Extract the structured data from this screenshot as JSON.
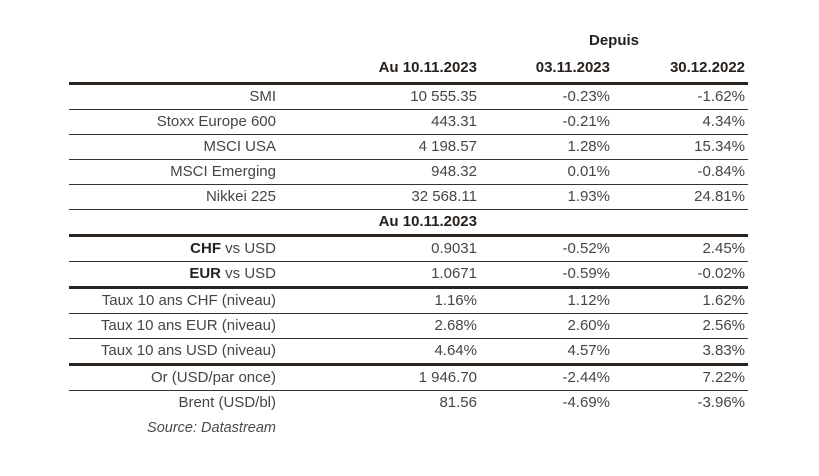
{
  "colors": {
    "background": "#ffffff",
    "line_thick": "#2b231d",
    "line_thin": "#3a322b",
    "text_body": "#454545",
    "text_header": "#27211d"
  },
  "table": {
    "depuis_header": "Depuis",
    "column_headers": [
      "Au 10.11.2023",
      "03.11.2023",
      "30.12.2022"
    ],
    "rows": [
      {
        "label_bold": "",
        "label": "SMI",
        "values": [
          "10 555.35",
          "-0.23%",
          "-1.62%"
        ],
        "border": "thin",
        "section": false
      },
      {
        "label_bold": "",
        "label": "Stoxx Europe 600",
        "values": [
          "443.31",
          "-0.21%",
          "4.34%"
        ],
        "border": "thin",
        "section": false
      },
      {
        "label_bold": "",
        "label": "MSCI USA",
        "values": [
          "4 198.57",
          "1.28%",
          "15.34%"
        ],
        "border": "thin",
        "section": false
      },
      {
        "label_bold": "",
        "label": "MSCI Emerging",
        "values": [
          "948.32",
          "0.01%",
          "-0.84%"
        ],
        "border": "thin",
        "section": false
      },
      {
        "label_bold": "",
        "label": "Nikkei 225",
        "values": [
          "32 568.11",
          "1.93%",
          "24.81%"
        ],
        "border": "thin",
        "section": false
      },
      {
        "label_bold": "",
        "label": "",
        "values": [
          "Au 10.11.2023",
          "",
          ""
        ],
        "border": "thick",
        "section": true
      },
      {
        "label_bold": "CHF",
        "label": " vs USD",
        "values": [
          "0.9031",
          "-0.52%",
          "2.45%"
        ],
        "border": "thin",
        "section": false
      },
      {
        "label_bold": "EUR",
        "label": " vs USD",
        "values": [
          "1.0671",
          "-0.59%",
          "-0.02%"
        ],
        "border": "thick",
        "section": false
      },
      {
        "label_bold": "",
        "label": "Taux 10 ans CHF (niveau)",
        "values": [
          "1.16%",
          "1.12%",
          "1.62%"
        ],
        "border": "thin",
        "section": false
      },
      {
        "label_bold": "",
        "label": "Taux 10 ans EUR (niveau)",
        "values": [
          "2.68%",
          "2.60%",
          "2.56%"
        ],
        "border": "thin",
        "section": false
      },
      {
        "label_bold": "",
        "label": "Taux 10 ans USD (niveau)",
        "values": [
          "4.64%",
          "4.57%",
          "3.83%"
        ],
        "border": "thick",
        "section": false
      },
      {
        "label_bold": "",
        "label": "Or (USD/par once)",
        "values": [
          "1 946.70",
          "-2.44%",
          "7.22%"
        ],
        "border": "thin",
        "section": false
      },
      {
        "label_bold": "",
        "label": "Brent (USD/bl)",
        "values": [
          "81.56",
          "-4.69%",
          "-3.96%"
        ],
        "border": "none",
        "section": false
      }
    ],
    "source_note": "Source: Datastream"
  }
}
